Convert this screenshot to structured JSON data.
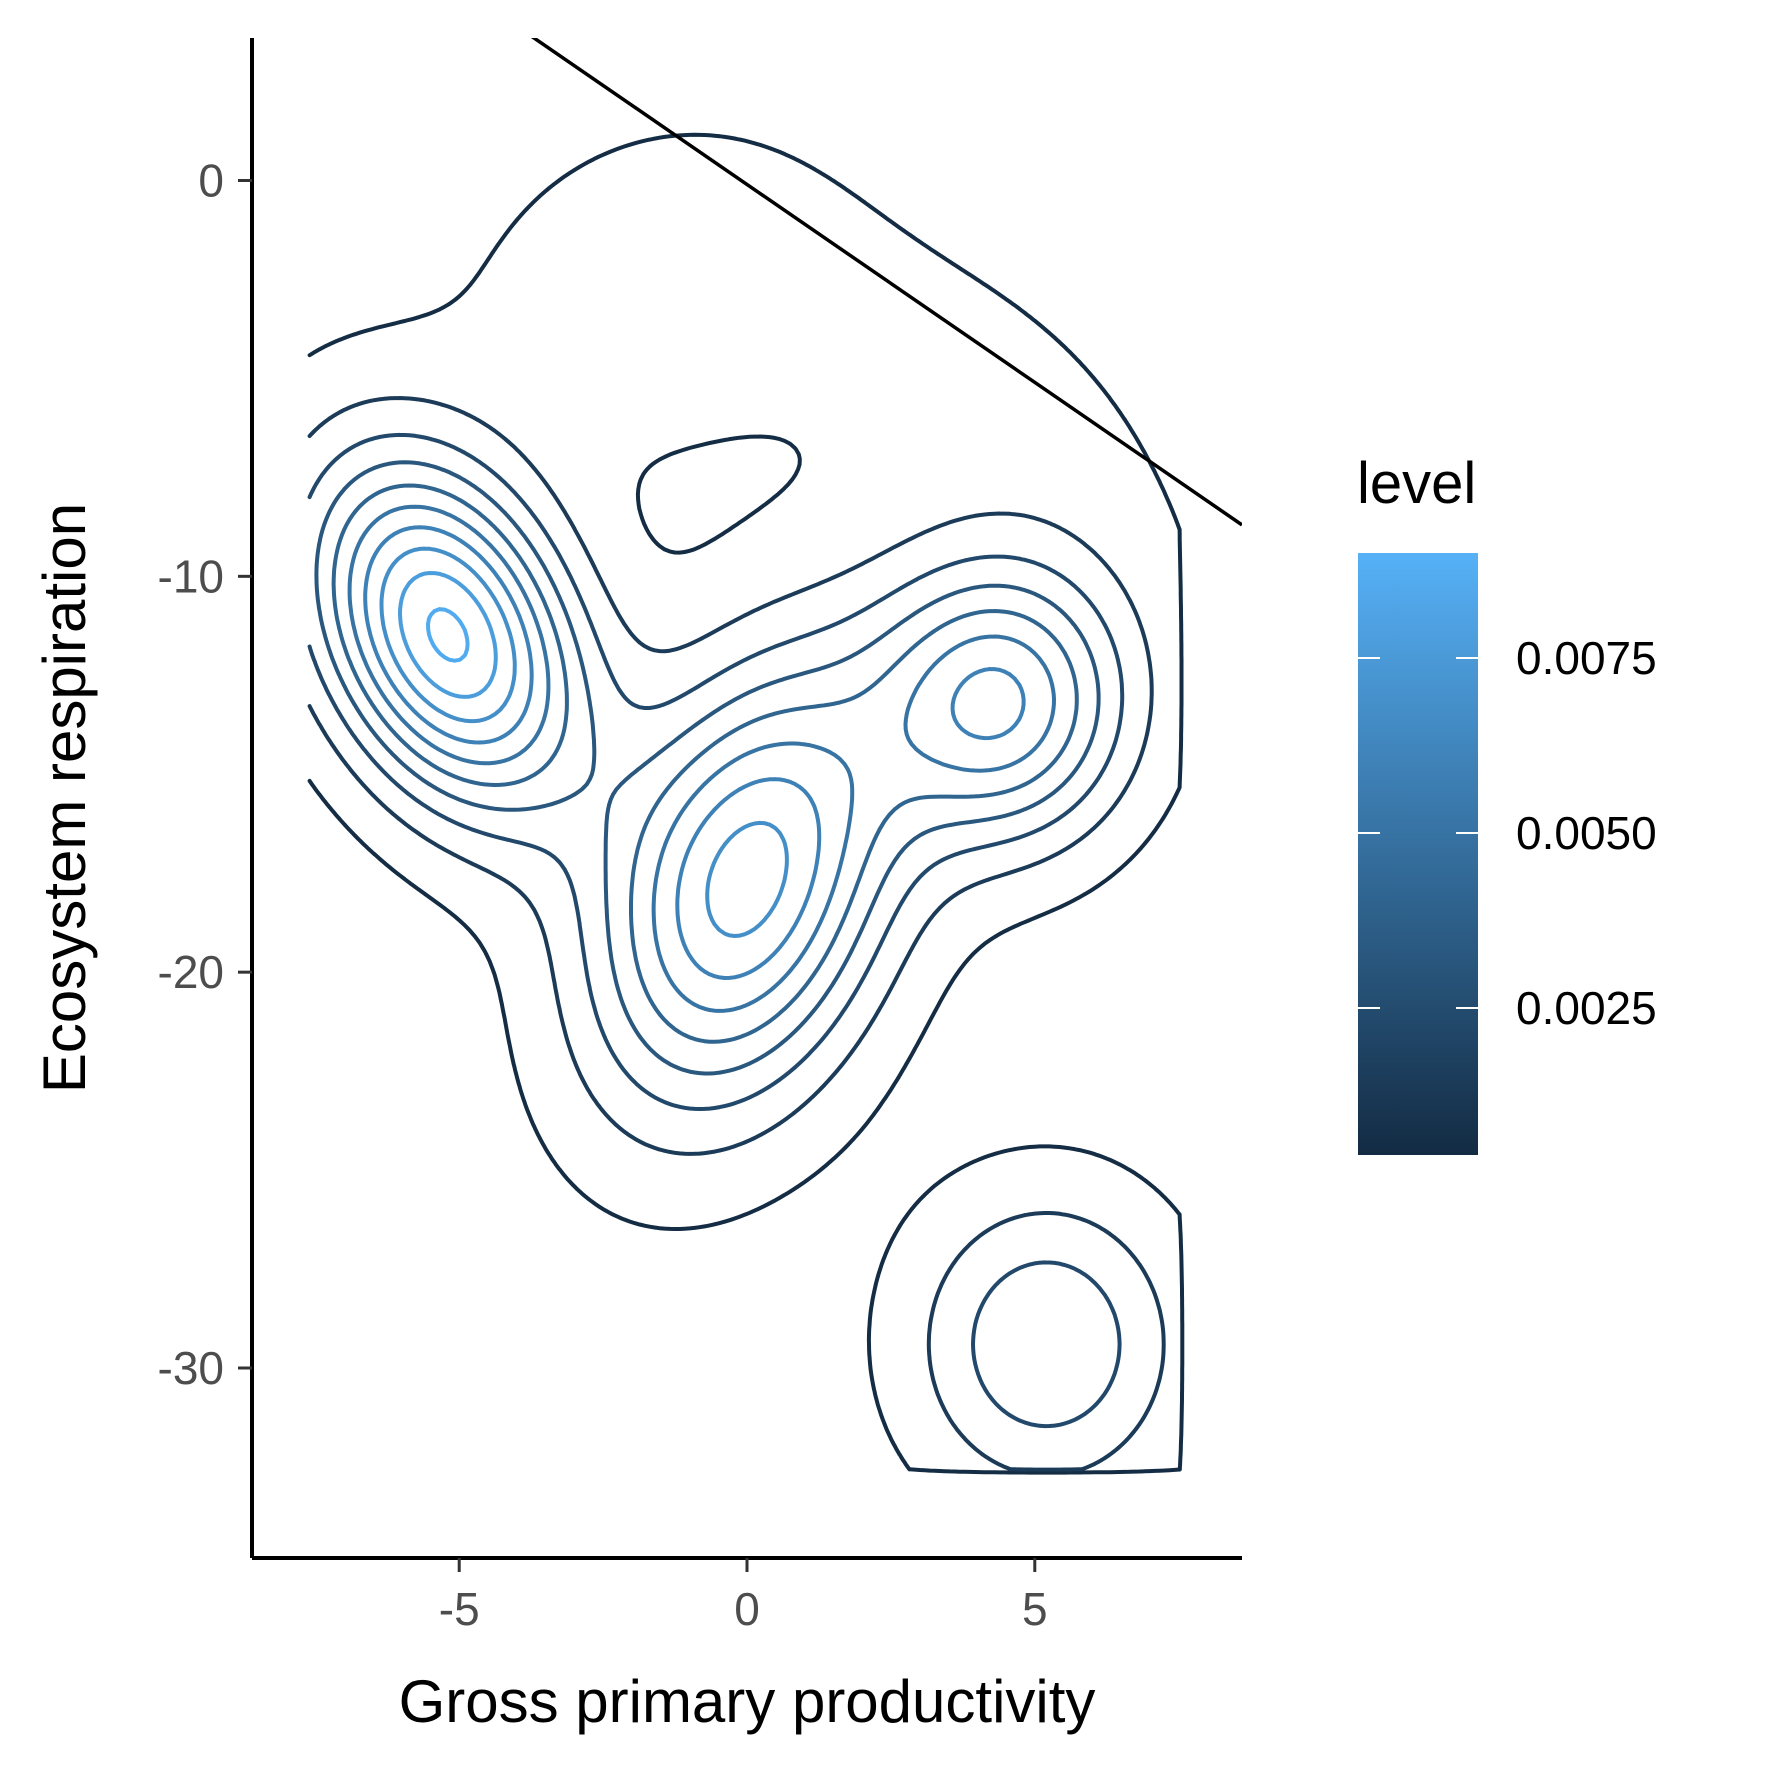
{
  "chart_data": {
    "type": "contour",
    "xlabel": "Gross primary productivity",
    "ylabel": "Ecosystem respiration",
    "xlim": [
      -8.6,
      8.6
    ],
    "ylim": [
      -34.8,
      3.6
    ],
    "x_ticks": [
      -5,
      0,
      5
    ],
    "x_tick_labels": [
      "-5",
      "0",
      "5"
    ],
    "y_ticks": [
      0,
      -10,
      -20,
      -30
    ],
    "y_tick_labels": [
      "0",
      "-10",
      "-20",
      "-30"
    ],
    "grid": false,
    "legend": {
      "title": "level",
      "position": "right",
      "type": "colorbar",
      "range": [
        0.0004,
        0.009
      ],
      "ticks": [
        0.0025,
        0.005,
        0.0075
      ],
      "tick_labels": [
        "0.0025",
        "0.0050",
        "0.0075"
      ],
      "color_low": "#132B43",
      "color_high": "#56B1F7"
    },
    "reference_line": {
      "slope": -1,
      "intercept": -0.1
    },
    "density_peaks": [
      {
        "x": -5.6,
        "y": -11.8,
        "value": 0.007
      },
      {
        "x": 0.0,
        "y": -17.7,
        "value": 0.0088
      },
      {
        "x": 4.5,
        "y": -13.3,
        "value": 0.0052
      },
      {
        "x": 5.1,
        "y": -29.5,
        "value": 0.0042
      }
    ],
    "contour_levels": [
      0.0005,
      0.0014,
      0.0023,
      0.0032,
      0.0041,
      0.005,
      0.0059,
      0.0068,
      0.0077,
      0.0086
    ]
  }
}
